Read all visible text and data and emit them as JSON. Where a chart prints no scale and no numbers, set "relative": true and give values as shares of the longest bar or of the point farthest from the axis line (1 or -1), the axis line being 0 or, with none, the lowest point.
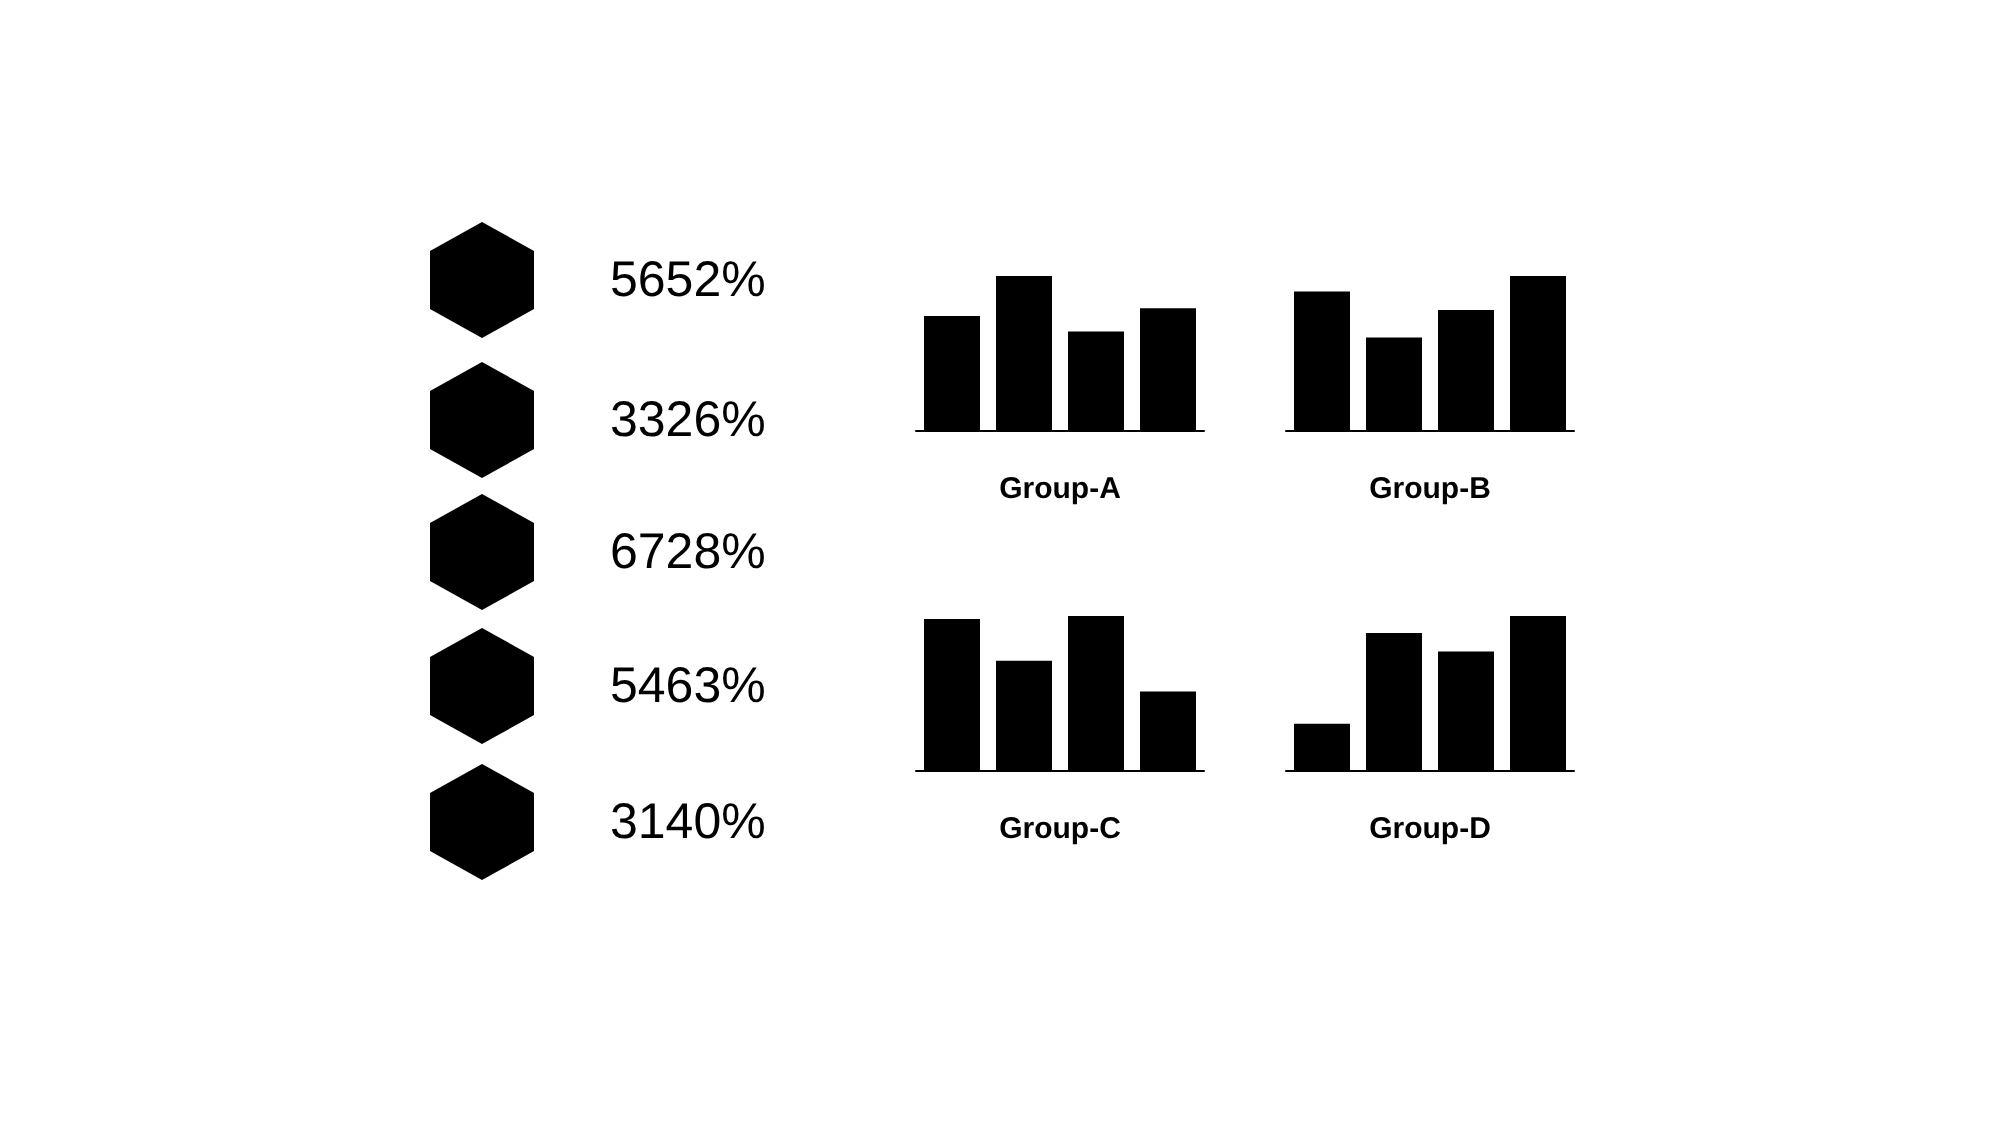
{
  "chart_data": [
    {
      "type": "other",
      "annotations": [
        "5652%",
        "3326%",
        "6728%",
        "5463%",
        "3140%"
      ]
    },
    {
      "type": "bar",
      "relative": true,
      "xlabel": "Group-A",
      "categories": [
        null,
        null,
        null,
        null
      ],
      "values": [
        0.74,
        1,
        0.64,
        0.79
      ],
      "color": "#000000"
    },
    {
      "type": "bar",
      "relative": true,
      "xlabel": "Group-B",
      "categories": [
        null,
        null,
        null,
        null
      ],
      "values": [
        0.9,
        0.6,
        0.78,
        1
      ],
      "color": "#000000"
    },
    {
      "type": "bar",
      "relative": true,
      "xlabel": "Group-C",
      "categories": [
        null,
        null,
        null,
        null
      ],
      "values": [
        0.98,
        0.71,
        1,
        0.51
      ],
      "color": "#000000"
    },
    {
      "type": "bar",
      "relative": true,
      "xlabel": "Group-D",
      "categories": [
        null,
        null,
        null,
        null
      ],
      "values": [
        0.3,
        0.89,
        0.77,
        1
      ],
      "color": "#000000"
    }
  ]
}
